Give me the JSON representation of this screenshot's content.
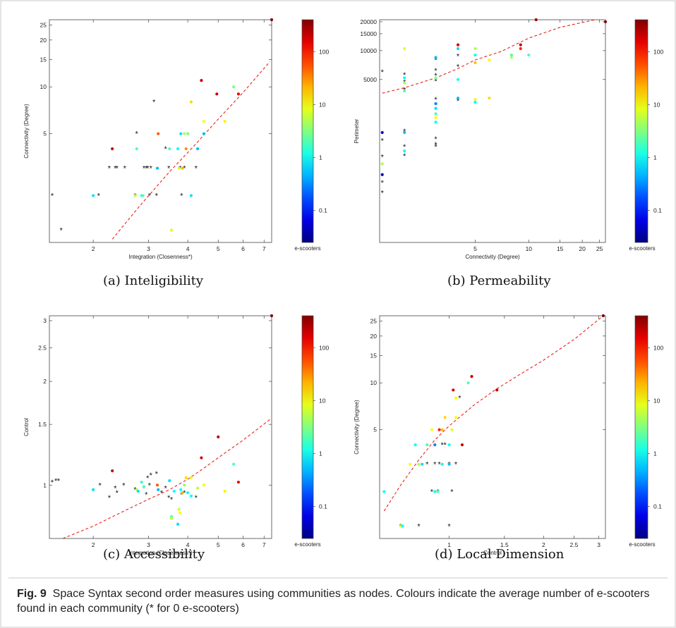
{
  "figure": {
    "caption_label": "Fig. 9",
    "caption_text": "Space Syntax second order measures using communities as nodes. Colours indicate the average number of e-scooters found in each community (* for 0 e-scooters)"
  },
  "colorbar": {
    "label": "e-scooters",
    "ticks": [
      {
        "value": 0.1,
        "label": "0.1"
      },
      {
        "value": 1,
        "label": "1"
      },
      {
        "value": 10,
        "label": "10"
      },
      {
        "value": 100,
        "label": "100"
      }
    ],
    "range": [
      0.025,
      400
    ],
    "scale": "log",
    "colormap": "jet"
  },
  "chart_data": [
    {
      "type": "scatter",
      "caption": "(a) Inteligibility",
      "xlabel": "Integration (Closenness*)",
      "ylabel": "Connectivity (Degree)",
      "xscale": "log",
      "yscale": "log",
      "xlim": [
        1.45,
        7.4
      ],
      "ylim": [
        1.0,
        27
      ],
      "xticks": [
        2,
        3,
        4,
        5,
        6,
        7
      ],
      "yticks": [
        5,
        10,
        15,
        20,
        25
      ],
      "trend": [
        [
          2.3,
          1.05
        ],
        [
          2.8,
          1.7
        ],
        [
          3.5,
          2.85
        ],
        [
          4.2,
          4.2
        ],
        [
          5.0,
          6.2
        ],
        [
          6.0,
          9.2
        ],
        [
          7.3,
          14.5
        ]
      ],
      "zeros": [
        [
          1.48,
          2
        ],
        [
          1.58,
          1.2
        ],
        [
          2.08,
          2
        ],
        [
          2.25,
          3
        ],
        [
          2.35,
          3
        ],
        [
          2.38,
          3
        ],
        [
          2.52,
          3
        ],
        [
          2.72,
          2
        ],
        [
          2.75,
          5
        ],
        [
          2.9,
          3
        ],
        [
          2.95,
          3
        ],
        [
          2.98,
          3
        ],
        [
          3.02,
          2
        ],
        [
          3.05,
          3
        ],
        [
          3.12,
          8
        ],
        [
          3.18,
          2
        ],
        [
          3.4,
          4
        ],
        [
          3.48,
          3
        ],
        [
          3.78,
          3
        ],
        [
          3.82,
          2
        ],
        [
          3.9,
          3
        ],
        [
          4.25,
          3
        ]
      ],
      "points": [
        [
          2.0,
          2,
          0.7
        ],
        [
          2.3,
          4,
          180
        ],
        [
          2.72,
          2,
          6
        ],
        [
          2.75,
          4,
          2
        ],
        [
          2.85,
          2,
          1.5
        ],
        [
          2.88,
          2,
          2
        ],
        [
          3.2,
          3,
          0.5
        ],
        [
          3.22,
          5,
          50
        ],
        [
          3.5,
          4,
          2
        ],
        [
          3.55,
          1.2,
          7
        ],
        [
          3.72,
          4,
          1
        ],
        [
          3.75,
          3,
          8
        ],
        [
          3.8,
          5,
          0.7
        ],
        [
          3.85,
          3,
          20
        ],
        [
          3.9,
          5,
          5
        ],
        [
          3.95,
          4,
          30
        ],
        [
          4.0,
          5,
          3
        ],
        [
          4.1,
          8,
          15
        ],
        [
          4.1,
          2,
          0.7
        ],
        [
          4.3,
          4,
          0.5
        ],
        [
          4.42,
          11,
          190
        ],
        [
          4.5,
          6,
          10
        ],
        [
          4.5,
          5,
          0.5
        ],
        [
          4.95,
          9,
          200
        ],
        [
          5.25,
          6,
          12
        ],
        [
          5.6,
          10,
          3
        ],
        [
          5.8,
          9,
          150
        ],
        [
          7.4,
          27,
          400
        ]
      ]
    },
    {
      "type": "scatter",
      "caption": "(b) Permeability",
      "xlabel": "Connectivity (Degree)",
      "ylabel": "Perimeter",
      "xscale": "log",
      "yscale": "log",
      "xlim": [
        1.45,
        27
      ],
      "ylim": [
        100,
        21000
      ],
      "xticks": [
        5,
        10,
        15,
        20,
        25
      ],
      "yticks": [
        5000,
        10000,
        15000,
        20000
      ],
      "trend": [
        [
          1.5,
          3600
        ],
        [
          2,
          4100
        ],
        [
          3,
          5200
        ],
        [
          4,
          6500
        ],
        [
          5,
          8000
        ],
        [
          7,
          9800
        ],
        [
          10,
          13500
        ],
        [
          15,
          17500
        ],
        [
          25,
          21500
        ]
      ],
      "zeros": [
        [
          1.5,
          1150
        ],
        [
          1.5,
          780
        ],
        [
          1.5,
          420
        ],
        [
          1.5,
          330
        ],
        [
          1.5,
          6000
        ],
        [
          2,
          3900
        ],
        [
          2,
          1450
        ],
        [
          2,
          1000
        ],
        [
          2,
          800
        ],
        [
          2,
          4700
        ],
        [
          2,
          5600
        ],
        [
          3,
          3100
        ],
        [
          3,
          1200
        ],
        [
          3,
          1050
        ],
        [
          3,
          1000
        ],
        [
          3,
          6200
        ],
        [
          3,
          4800
        ],
        [
          3,
          8000
        ],
        [
          3,
          5500
        ],
        [
          4,
          6800
        ],
        [
          4,
          8800
        ],
        [
          4,
          3000
        ]
      ],
      "points": [
        [
          1.5,
          1400,
          0.05
        ],
        [
          1.5,
          510,
          0.04
        ],
        [
          1.5,
          660,
          5
        ],
        [
          2,
          900,
          1
        ],
        [
          2,
          1400,
          0.5
        ],
        [
          2,
          3800,
          2
        ],
        [
          2,
          4600,
          5
        ],
        [
          2,
          5200,
          1
        ],
        [
          2,
          10500,
          8
        ],
        [
          3,
          5200,
          3
        ],
        [
          3,
          2800,
          0.3
        ],
        [
          3,
          2500,
          0.7
        ],
        [
          3,
          2200,
          2
        ],
        [
          3,
          2000,
          10
        ],
        [
          3,
          1800,
          1
        ],
        [
          3,
          8500,
          0.5
        ],
        [
          4,
          11500,
          180
        ],
        [
          4,
          10500,
          0.7
        ],
        [
          4,
          3200,
          0.5
        ],
        [
          4,
          5000,
          1
        ],
        [
          5,
          10500,
          5
        ],
        [
          5,
          9000,
          1
        ],
        [
          5,
          7500,
          20
        ],
        [
          5,
          3100,
          8
        ],
        [
          5,
          2900,
          1
        ],
        [
          6,
          3200,
          15
        ],
        [
          6,
          8000,
          10
        ],
        [
          8,
          8500,
          5
        ],
        [
          8,
          9000,
          2
        ],
        [
          9,
          10500,
          80
        ],
        [
          9,
          11500,
          200
        ],
        [
          10,
          9000,
          2
        ],
        [
          11,
          21000,
          300
        ],
        [
          27,
          20000,
          400
        ]
      ]
    },
    {
      "type": "scatter",
      "caption": "(c) Accessibility",
      "xlabel": "Integration (Closenness*)",
      "ylabel": "Control",
      "xscale": "log",
      "yscale": "log",
      "xlim": [
        1.45,
        7.4
      ],
      "ylim": [
        0.7,
        3.1
      ],
      "xticks": [
        2,
        3,
        4,
        5,
        6,
        7
      ],
      "yticks": [
        1,
        1.5,
        2,
        2.5,
        3
      ],
      "trend": [
        [
          1.6,
          0.7
        ],
        [
          2.0,
          0.76
        ],
        [
          2.5,
          0.84
        ],
        [
          3.0,
          0.91
        ],
        [
          3.5,
          0.97
        ],
        [
          4.0,
          1.04
        ],
        [
          4.5,
          1.12
        ],
        [
          5.0,
          1.2
        ],
        [
          6.0,
          1.35
        ],
        [
          7.3,
          1.55
        ]
      ],
      "zeros": [
        [
          1.48,
          1.02
        ],
        [
          1.52,
          1.03
        ],
        [
          1.55,
          1.03
        ],
        [
          2.1,
          1.0
        ],
        [
          2.25,
          0.92
        ],
        [
          2.35,
          0.98
        ],
        [
          2.38,
          0.95
        ],
        [
          2.5,
          1.0
        ],
        [
          2.72,
          0.97
        ],
        [
          2.9,
          0.98
        ],
        [
          2.95,
          0.94
        ],
        [
          2.98,
          1.05
        ],
        [
          3.02,
          1.0
        ],
        [
          3.05,
          1.07
        ],
        [
          3.18,
          1.08
        ],
        [
          3.3,
          0.95
        ],
        [
          3.4,
          0.98
        ],
        [
          3.48,
          0.92
        ],
        [
          3.55,
          0.91
        ],
        [
          3.82,
          0.94
        ],
        [
          3.9,
          0.95
        ],
        [
          4.25,
          0.92
        ]
      ],
      "points": [
        [
          2.0,
          0.97,
          0.7
        ],
        [
          2.3,
          1.1,
          180
        ],
        [
          2.75,
          0.97,
          6
        ],
        [
          2.78,
          0.96,
          0.7
        ],
        [
          2.85,
          1.02,
          1.5
        ],
        [
          2.9,
          0.99,
          2
        ],
        [
          3.2,
          1.0,
          50
        ],
        [
          3.22,
          0.97,
          0.5
        ],
        [
          3.5,
          1.03,
          0.7
        ],
        [
          3.55,
          0.81,
          2
        ],
        [
          3.55,
          0.8,
          6
        ],
        [
          3.62,
          0.96,
          1
        ],
        [
          3.72,
          0.77,
          0.7
        ],
        [
          3.75,
          0.85,
          7
        ],
        [
          3.78,
          0.83,
          10
        ],
        [
          3.8,
          0.97,
          1
        ],
        [
          3.85,
          0.95,
          20
        ],
        [
          3.9,
          1.0,
          4
        ],
        [
          3.95,
          1.05,
          15
        ],
        [
          4.0,
          0.95,
          1
        ],
        [
          4.1,
          1.05,
          8
        ],
        [
          4.1,
          0.93,
          1
        ],
        [
          4.3,
          0.98,
          5
        ],
        [
          4.42,
          1.2,
          190
        ],
        [
          4.5,
          1.0,
          10
        ],
        [
          5.0,
          1.38,
          200
        ],
        [
          5.25,
          0.96,
          12
        ],
        [
          5.6,
          1.15,
          2
        ],
        [
          5.8,
          1.02,
          150
        ],
        [
          7.4,
          3.1,
          400
        ]
      ]
    },
    {
      "type": "scatter",
      "caption": "(d) Local Dimension",
      "xlabel": "Control",
      "ylabel": "Connectivity (Degree)",
      "xscale": "log",
      "yscale": "log",
      "xlim": [
        0.6,
        3.15
      ],
      "ylim": [
        1.0,
        27
      ],
      "xticks": [
        1,
        1.5,
        2,
        2.5,
        3
      ],
      "yticks": [
        5,
        10,
        15,
        20,
        25
      ],
      "trend": [
        [
          0.62,
          1.5
        ],
        [
          0.7,
          2.2
        ],
        [
          0.8,
          3.2
        ],
        [
          0.9,
          4.3
        ],
        [
          1.0,
          5.3
        ],
        [
          1.2,
          7.2
        ],
        [
          1.4,
          9.0
        ],
        [
          1.7,
          11.5
        ],
        [
          2.0,
          14.0
        ],
        [
          2.5,
          19
        ],
        [
          3.1,
          27
        ]
      ],
      "zeros": [
        [
          0.7,
          1.2
        ],
        [
          0.8,
          1.2
        ],
        [
          0.85,
          3
        ],
        [
          0.9,
          3
        ],
        [
          0.92,
          2
        ],
        [
          0.95,
          4
        ],
        [
          0.97,
          4
        ],
        [
          1.0,
          3
        ],
        [
          1.02,
          2
        ],
        [
          1.05,
          3
        ],
        [
          1.08,
          8
        ],
        [
          1.0,
          1.2
        ],
        [
          0.88,
          2
        ],
        [
          0.93,
          3
        ]
      ],
      "points": [
        [
          0.62,
          2,
          1
        ],
        [
          0.7,
          1.2,
          7
        ],
        [
          0.71,
          1.2,
          1
        ],
        [
          0.75,
          3,
          10
        ],
        [
          0.78,
          4,
          1
        ],
        [
          0.8,
          3,
          5
        ],
        [
          0.82,
          3,
          0.7
        ],
        [
          0.85,
          4,
          2
        ],
        [
          0.88,
          5,
          10
        ],
        [
          0.9,
          2,
          1
        ],
        [
          0.9,
          4,
          0.3
        ],
        [
          0.92,
          2,
          2
        ],
        [
          0.93,
          5,
          100
        ],
        [
          0.95,
          3,
          1
        ],
        [
          0.95,
          5,
          20
        ],
        [
          0.97,
          6,
          15
        ],
        [
          1.0,
          3,
          0.5
        ],
        [
          1.0,
          4,
          1
        ],
        [
          1.02,
          5,
          8
        ],
        [
          1.05,
          6,
          10
        ],
        [
          1.03,
          9,
          180
        ],
        [
          1.05,
          8,
          10
        ],
        [
          1.1,
          4,
          200
        ],
        [
          1.15,
          10,
          2
        ],
        [
          1.18,
          11,
          200
        ],
        [
          1.42,
          9,
          200
        ],
        [
          3.1,
          27,
          400
        ]
      ]
    }
  ]
}
